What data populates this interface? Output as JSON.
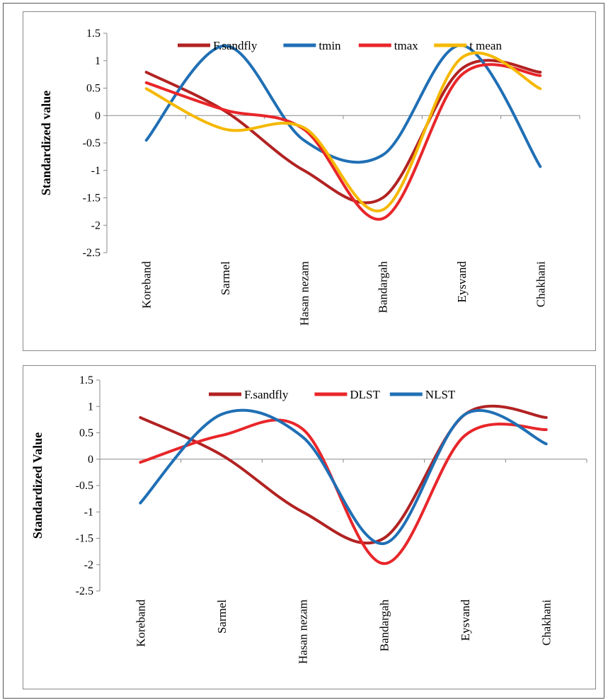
{
  "chart_data": [
    {
      "type": "line",
      "ylabel": "Standardized value",
      "categories": [
        "Koreband",
        "Sarmel",
        "Hasan nezam",
        "Bandargah",
        "Eysvand",
        "Chakhani"
      ],
      "ylim": [
        -2.5,
        1.5
      ],
      "yticks": [
        "1.5",
        "1",
        "0.5",
        "0",
        "-0.5",
        "-1",
        "-1.5",
        "-2",
        "-2.5"
      ],
      "grid": false,
      "legend": "top",
      "series": [
        {
          "name": "F.sandfly",
          "color": "#b22222",
          "values": [
            0.79,
            0.08,
            -1.0,
            -1.5,
            0.85,
            0.79
          ]
        },
        {
          "name": "tmin",
          "color": "#1f6fb5",
          "values": [
            -0.45,
            1.27,
            -0.45,
            -0.72,
            1.28,
            -0.93
          ]
        },
        {
          "name": "tmax",
          "color": "#e8262a",
          "values": [
            0.6,
            0.1,
            -0.25,
            -1.88,
            0.74,
            0.73
          ]
        },
        {
          "name": "t mean",
          "color": "#f5b800",
          "values": [
            0.49,
            -0.25,
            -0.22,
            -1.72,
            1.05,
            0.49
          ]
        }
      ]
    },
    {
      "type": "line",
      "ylabel": "Standardized Value",
      "categories": [
        "Koreband",
        "Sarmel",
        "Hasan nezam",
        "Bandargah",
        "Eysvand",
        "Chakhani"
      ],
      "ylim": [
        -2.5,
        1.5
      ],
      "yticks": [
        "1.5",
        "1",
        "0.5",
        "0",
        "-0.5",
        "-1",
        "-1.5",
        "-2",
        "-2.5"
      ],
      "grid": false,
      "legend": "top",
      "series": [
        {
          "name": "F.sandfly",
          "color": "#b22222",
          "values": [
            0.79,
            0.08,
            -1.0,
            -1.5,
            0.85,
            0.79
          ]
        },
        {
          "name": "DLST",
          "color": "#e8262a",
          "values": [
            -0.06,
            0.45,
            0.57,
            -1.98,
            0.45,
            0.56
          ]
        },
        {
          "name": "NLST",
          "color": "#1f6fb5",
          "values": [
            -0.83,
            0.85,
            0.42,
            -1.6,
            0.85,
            0.29
          ]
        }
      ]
    }
  ]
}
